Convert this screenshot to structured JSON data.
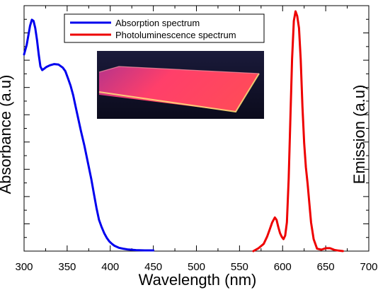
{
  "chart_data": {
    "type": "line",
    "xlabel": "Wavelength (nm)",
    "ylabel_left": "Absorbance (a.u)",
    "ylabel_right": "Emission (a.u)",
    "xlim": [
      300,
      700
    ],
    "xticks": [
      300,
      350,
      400,
      450,
      500,
      550,
      600,
      650,
      700
    ],
    "ylim": [
      0,
      1
    ],
    "grid": false,
    "legend_position": "top-center",
    "inset_image": "photo of a glowing red-pink luminescent film on a dark background",
    "series": [
      {
        "name": "Absorption spectrum",
        "color": "#0000ee",
        "axis": "left",
        "x": [
          300,
          303,
          305,
          307,
          309,
          311,
          313,
          315,
          317,
          319,
          321,
          323,
          326,
          330,
          335,
          340,
          345,
          348,
          351,
          354,
          357,
          360,
          363,
          366,
          370,
          374,
          378,
          381,
          384,
          387,
          390,
          393,
          396,
          399,
          402,
          405,
          410,
          415,
          420,
          430,
          440,
          450
        ],
        "y": [
          0.82,
          0.86,
          0.9,
          0.94,
          0.965,
          0.96,
          0.93,
          0.88,
          0.82,
          0.77,
          0.755,
          0.76,
          0.768,
          0.775,
          0.78,
          0.778,
          0.765,
          0.75,
          0.72,
          0.69,
          0.65,
          0.6,
          0.55,
          0.5,
          0.44,
          0.37,
          0.3,
          0.24,
          0.18,
          0.13,
          0.1,
          0.075,
          0.055,
          0.04,
          0.03,
          0.022,
          0.014,
          0.01,
          0.007,
          0.004,
          0.003,
          0.003
        ]
      },
      {
        "name": "Photoluminescence spectrum",
        "color": "#ee0000",
        "axis": "right",
        "x": [
          566,
          572,
          578,
          582,
          585,
          588,
          591,
          593,
          595,
          597,
          599,
          601,
          603,
          605,
          607,
          609,
          611,
          613,
          615,
          617,
          619,
          621,
          623,
          625,
          627,
          629,
          631,
          633,
          636,
          640,
          645,
          650,
          655,
          660,
          665,
          670
        ],
        "y": [
          0.0,
          0.012,
          0.03,
          0.06,
          0.09,
          0.12,
          0.14,
          0.13,
          0.1,
          0.075,
          0.06,
          0.05,
          0.065,
          0.12,
          0.3,
          0.55,
          0.8,
          0.96,
          1.0,
          0.98,
          0.93,
          0.8,
          0.6,
          0.45,
          0.35,
          0.28,
          0.2,
          0.12,
          0.05,
          0.01,
          0.006,
          0.012,
          0.012,
          0.005,
          0.002,
          0.0
        ]
      }
    ]
  }
}
